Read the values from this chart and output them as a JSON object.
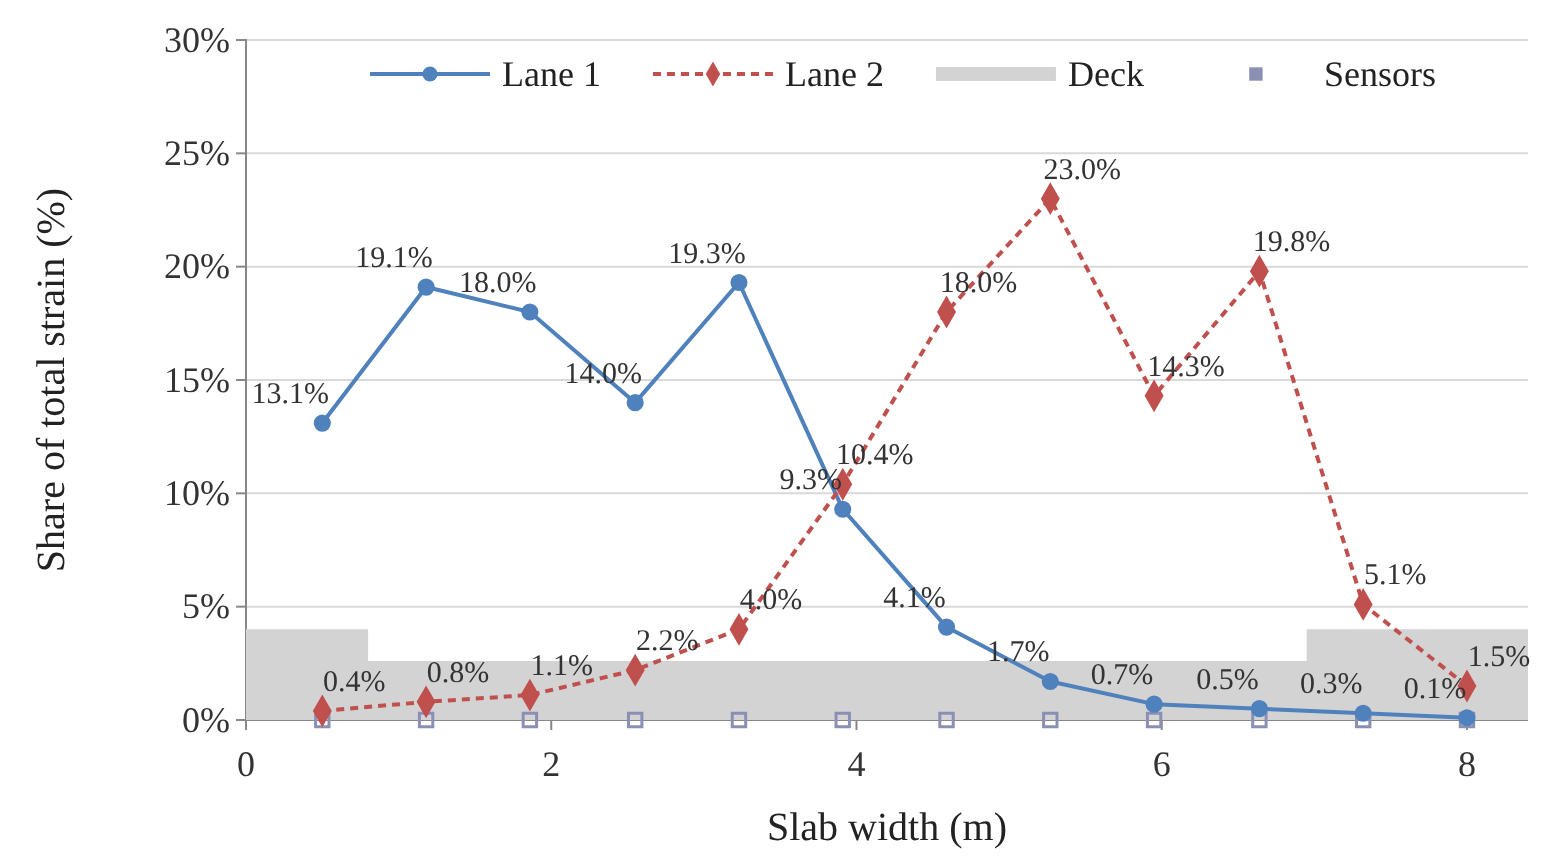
{
  "chart_data": {
    "type": "line",
    "xlabel": "Slab width (m)",
    "ylabel": "Share of total strain (%)",
    "xlim": [
      0,
      8.4
    ],
    "xticks": [
      0,
      2,
      4,
      6,
      8
    ],
    "ylim": [
      0,
      30
    ],
    "yticks": [
      {
        "value": 0,
        "label": "0%"
      },
      {
        "value": 5,
        "label": "5%"
      },
      {
        "value": 10,
        "label": "10%"
      },
      {
        "value": 15,
        "label": "15%"
      },
      {
        "value": 20,
        "label": "20%"
      },
      {
        "value": 25,
        "label": "25%"
      },
      {
        "value": 30,
        "label": "30%"
      }
    ],
    "grid": "y",
    "legend": "top",
    "series": [
      {
        "name": "Lane 1",
        "color": "#4f81bd",
        "marker": "circle",
        "line_style": "solid",
        "x": [
          0.5,
          1.18,
          1.86,
          2.55,
          3.23,
          3.91,
          4.59,
          5.27,
          5.95,
          6.64,
          7.32,
          8.0
        ],
        "values": [
          13.1,
          19.1,
          18.0,
          14.0,
          19.3,
          9.3,
          4.1,
          1.7,
          0.7,
          0.5,
          0.3,
          0.1
        ],
        "value_labels": [
          "13.1%",
          "19.1%",
          "18.0%",
          "14.0%",
          "19.3%",
          "9.3%",
          "4.1%",
          "1.7%",
          "0.7%",
          "0.5%",
          "0.3%",
          "0.1%"
        ]
      },
      {
        "name": "Lane 2",
        "color": "#c0504d",
        "marker": "diamond",
        "line_style": "dashed",
        "x": [
          0.5,
          1.18,
          1.86,
          2.55,
          3.23,
          3.91,
          4.59,
          5.27,
          5.95,
          6.64,
          7.32,
          8.0
        ],
        "values": [
          0.4,
          0.8,
          1.1,
          2.2,
          4.0,
          10.4,
          18.0,
          23.0,
          14.3,
          19.8,
          5.1,
          1.5
        ],
        "value_labels": [
          "0.4%",
          "0.8%",
          "1.1%",
          "2.2%",
          "4.0%",
          "10.4%",
          "18.0%",
          "23.0%",
          "14.3%",
          "19.8%",
          "5.1%",
          "1.5%"
        ]
      },
      {
        "name": "Deck",
        "type": "area",
        "color": "#d3d3d3",
        "x": [
          0,
          0.8,
          6.95,
          8.4
        ],
        "values": [
          4,
          2.6,
          4,
          4
        ]
      },
      {
        "name": "Sensors",
        "type": "scatter",
        "color": "#8c8fb4",
        "marker": "square",
        "x": [
          0.5,
          1.18,
          1.86,
          2.55,
          3.23,
          3.91,
          4.59,
          5.27,
          5.95,
          6.64,
          7.32,
          8.0
        ],
        "values": [
          0,
          0,
          0,
          0,
          0,
          0,
          0,
          0,
          0,
          0,
          0,
          0
        ]
      }
    ]
  }
}
